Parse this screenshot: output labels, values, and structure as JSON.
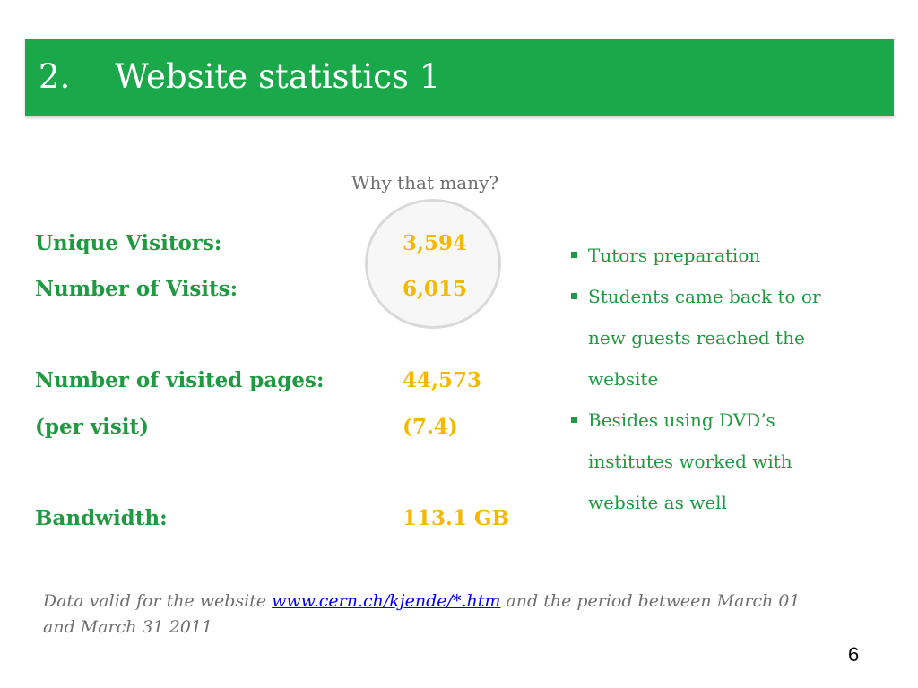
{
  "title": {
    "number": "2.",
    "text": "Website statistics 1"
  },
  "annotation": "Why that many?",
  "stats": [
    {
      "label": "Unique Visitors:",
      "value": "3,594"
    },
    {
      "label": "Number of Visits:",
      "value": "6,015"
    },
    {
      "label": "Number of visited pages:",
      "value": "44,573"
    },
    {
      "label": "(per visit)",
      "value": "(7.4)"
    },
    {
      "label": "Bandwidth:",
      "value": "113.1 GB"
    }
  ],
  "bullets": [
    "Tutors preparation",
    "Students came back to or new guests reached the website",
    "Besides using DVD’s institutes worked with website as well"
  ],
  "footnote": {
    "prefix": "Data valid for the website ",
    "link": "www.cern.ch/kjende/*.htm",
    "suffix": " and the period between March 01 and March 31 2011"
  },
  "page_number": "6",
  "colors": {
    "title_bar": "#1ba84a",
    "label_green": "#1f9a42",
    "value_yellow": "#f4b800"
  }
}
